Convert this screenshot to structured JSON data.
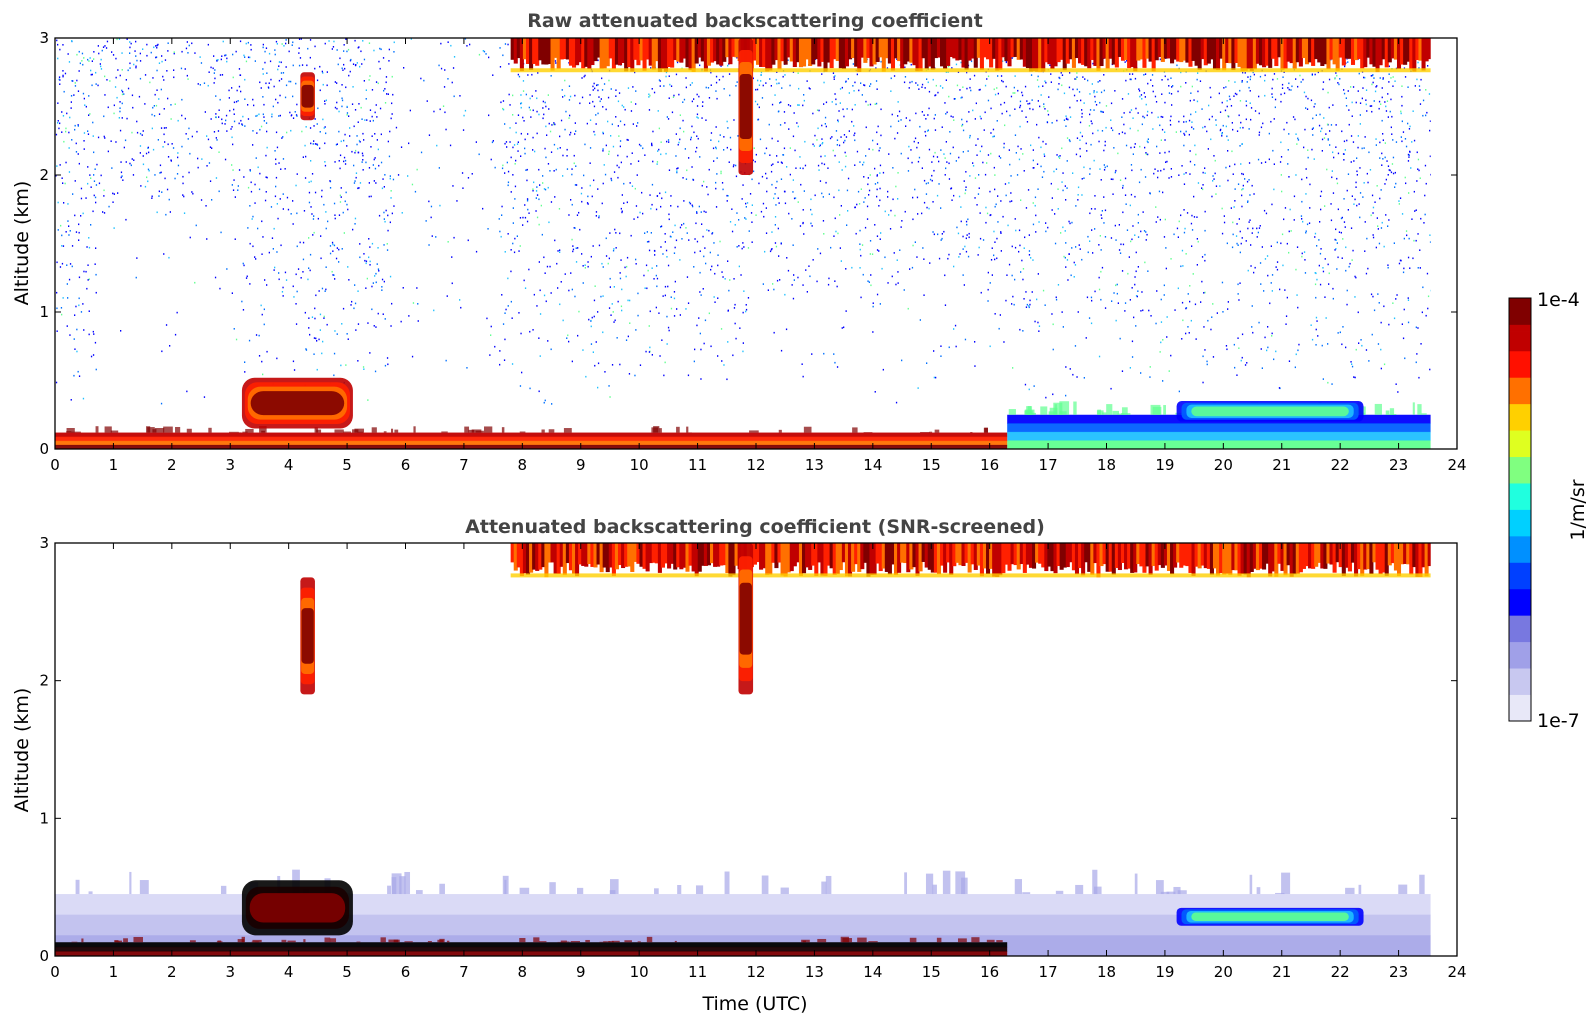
{
  "chart_data": [
    {
      "type": "heatmap",
      "title": "Raw attenuated backscattering coefficient",
      "xlabel": "",
      "ylabel": "Altitude (km)",
      "xlim": [
        0,
        24
      ],
      "ylim": [
        0,
        3
      ],
      "xticks": [
        "0",
        "1",
        "2",
        "3",
        "4",
        "5",
        "6",
        "7",
        "8",
        "9",
        "10",
        "11",
        "12",
        "13",
        "14",
        "15",
        "16",
        "17",
        "18",
        "19",
        "20",
        "21",
        "22",
        "23",
        "24"
      ],
      "yticks": [
        "0",
        "1",
        "2",
        "3"
      ],
      "data_extent_hours": [
        0,
        23.55
      ],
      "features": [
        {
          "name": "surface-layer",
          "x": [
            0,
            16.3
          ],
          "y": [
            0,
            0.12
          ],
          "level": "high"
        },
        {
          "name": "top-signal-band",
          "x": [
            7.8,
            23.55
          ],
          "y": [
            2.75,
            3.0
          ],
          "level": "high"
        },
        {
          "name": "elevated-layer",
          "x": [
            3.2,
            5.1
          ],
          "y": [
            0.15,
            0.52
          ],
          "level": "high"
        },
        {
          "name": "cloud-streak",
          "x": [
            11.7,
            11.95
          ],
          "y": [
            2.0,
            3.0
          ],
          "level": "high"
        },
        {
          "name": "cloud-patch",
          "x": [
            4.2,
            4.45
          ],
          "y": [
            2.4,
            2.75
          ],
          "level": "high"
        },
        {
          "name": "boundary-layer",
          "x": [
            16.3,
            23.55
          ],
          "y": [
            0,
            0.25
          ],
          "level": "medium"
        },
        {
          "name": "aerosol-layer",
          "x": [
            19.2,
            22.4
          ],
          "y": [
            0.2,
            0.35
          ],
          "level": "medium"
        },
        {
          "name": "noise-region",
          "x": [
            0,
            23.55
          ],
          "y": [
            0.3,
            3.0
          ],
          "level": "low"
        }
      ]
    },
    {
      "type": "heatmap",
      "title": "Attenuated backscattering coefficient (SNR-screened)",
      "xlabel": "Time (UTC)",
      "ylabel": "Altitude (km)",
      "xlim": [
        0,
        24
      ],
      "ylim": [
        0,
        3
      ],
      "xticks": [
        "0",
        "1",
        "2",
        "3",
        "4",
        "5",
        "6",
        "7",
        "8",
        "9",
        "10",
        "11",
        "12",
        "13",
        "14",
        "15",
        "16",
        "17",
        "18",
        "19",
        "20",
        "21",
        "22",
        "23",
        "24"
      ],
      "yticks": [
        "0",
        "1",
        "2",
        "3"
      ],
      "data_extent_hours": [
        0,
        23.55
      ],
      "features": [
        {
          "name": "surface-layer",
          "x": [
            0,
            16.3
          ],
          "y": [
            0,
            0.1
          ],
          "level": "saturated"
        },
        {
          "name": "top-signal-band",
          "x": [
            7.8,
            23.55
          ],
          "y": [
            2.75,
            3.0
          ],
          "level": "high"
        },
        {
          "name": "elevated-layer",
          "x": [
            3.2,
            5.1
          ],
          "y": [
            0.15,
            0.55
          ],
          "level": "saturated"
        },
        {
          "name": "cloud-streak",
          "x": [
            11.7,
            11.95
          ],
          "y": [
            1.9,
            3.0
          ],
          "level": "high"
        },
        {
          "name": "cloud-patch",
          "x": [
            4.2,
            4.45
          ],
          "y": [
            1.9,
            2.75
          ],
          "level": "high"
        },
        {
          "name": "boundary-layer",
          "x": [
            0,
            23.55
          ],
          "y": [
            0,
            0.45
          ],
          "level": "low"
        },
        {
          "name": "aerosol-layer",
          "x": [
            19.2,
            22.4
          ],
          "y": [
            0.22,
            0.35
          ],
          "level": "medium"
        }
      ]
    }
  ],
  "colorbar": {
    "label": "1/m/sr",
    "max_label": "1e-4",
    "min_label": "1e-7",
    "colors": [
      "#e8e8f8",
      "#c8c8f0",
      "#a0a0e8",
      "#7878e0",
      "#0000ff",
      "#0040ff",
      "#0090ff",
      "#00d0ff",
      "#20ffdf",
      "#80ff80",
      "#dfff20",
      "#ffd000",
      "#ff7000",
      "#ff1000",
      "#c00000",
      "#800000"
    ]
  }
}
